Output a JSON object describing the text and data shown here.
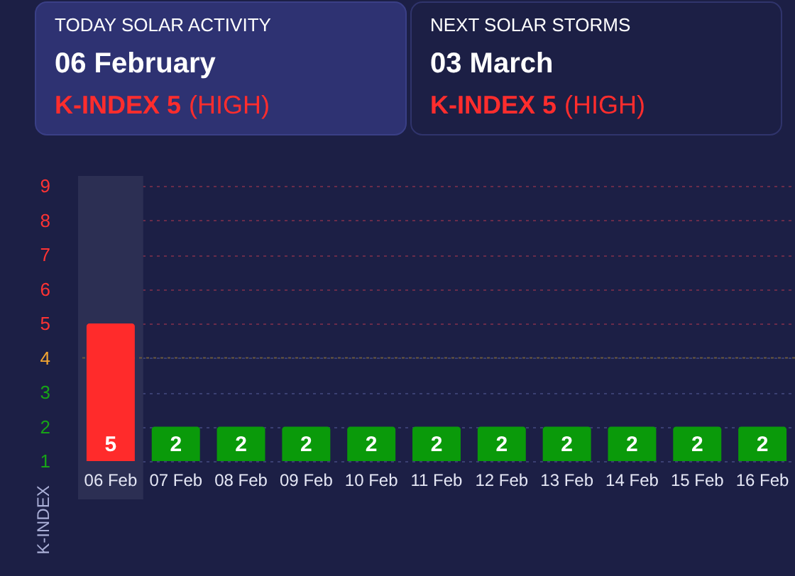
{
  "chart_data": [
    {
      "type": "other",
      "title": "TODAY SOLAR ACTIVITY",
      "annotations": [
        "06 February",
        "K-INDEX 5",
        "(HIGH)"
      ]
    },
    {
      "type": "other",
      "title": "NEXT SOLAR STORMS",
      "annotations": [
        "03 March",
        "K-INDEX 5",
        "(HIGH)"
      ]
    },
    {
      "type": "bar",
      "ylabel": "K-INDEX",
      "categories": [
        "06 Feb",
        "07 Feb",
        "08 Feb",
        "09 Feb",
        "10 Feb",
        "11 Feb",
        "12 Feb",
        "13 Feb",
        "14 Feb",
        "15 Feb",
        "16 Feb"
      ],
      "values": [
        5,
        2,
        2,
        2,
        2,
        2,
        2,
        2,
        2,
        2,
        2
      ],
      "colors": [
        "#ff2b2b",
        "#0a9a0a",
        "#0a9a0a",
        "#0a9a0a",
        "#0a9a0a",
        "#0a9a0a",
        "#0a9a0a",
        "#0a9a0a",
        "#0a9a0a",
        "#0a9a0a",
        "#0a9a0a"
      ],
      "ylim": [
        1,
        9
      ],
      "yticks": [
        1,
        2,
        3,
        4,
        5,
        6,
        7,
        8,
        9
      ],
      "grid": "y",
      "data_labels": true,
      "ref_lines": [
        {
          "axis": "y",
          "value": 4,
          "color": "#6c5a3e",
          "line_style": "dotted"
        }
      ],
      "bands": [
        {
          "axis": "x",
          "from": "06 Feb",
          "to": "06 Feb",
          "color": "#2c2f53"
        }
      ]
    }
  ]
}
